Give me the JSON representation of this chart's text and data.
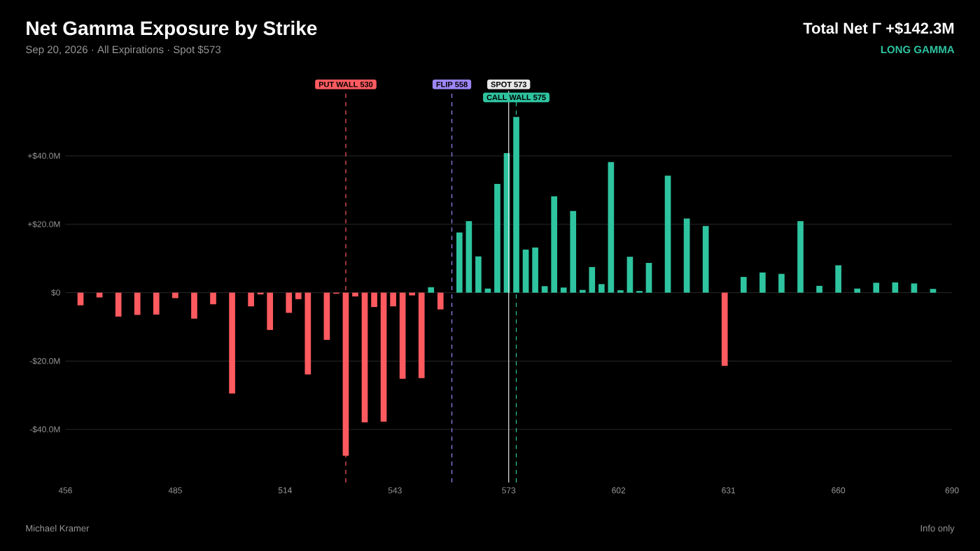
{
  "chart_data": {
    "type": "bar",
    "title": "Net Gamma Exposure by Strike",
    "subtitle": "Sep 20, 2026  ·  All Expirations  ·  Spot $573",
    "annotations": [
      "Total Net Γ  +$142.3M",
      "LONG GAMMA",
      "Michael Kramer",
      "Info only"
    ],
    "x": [
      460,
      465,
      470,
      475,
      480,
      485,
      490,
      495,
      500,
      505,
      507.5,
      510,
      515,
      517.5,
      520,
      525,
      527.5,
      530,
      532.5,
      535,
      537.5,
      540,
      542.5,
      545,
      547.5,
      550,
      552.5,
      555,
      560,
      562.5,
      565,
      567.5,
      570,
      572.5,
      575,
      577.5,
      580,
      582.5,
      585,
      587.5,
      590,
      592.5,
      595,
      597.5,
      600,
      602.5,
      605,
      607.5,
      610,
      615,
      620,
      625,
      630,
      635,
      640,
      645,
      650,
      655,
      660,
      665,
      670,
      675,
      680,
      685
    ],
    "values": [
      -3.7,
      -1.4,
      -7.0,
      -6.5,
      -6.4,
      -1.6,
      -7.6,
      -3.4,
      -29.5,
      -4.0,
      -0.5,
      -10.9,
      -5.9,
      -1.9,
      -23.9,
      -13.8,
      -0.3,
      -47.7,
      -1.1,
      -37.9,
      -4.2,
      -37.7,
      -4.0,
      -25.2,
      -0.8,
      -25.0,
      1.6,
      -4.9,
      17.6,
      20.9,
      10.6,
      1.2,
      31.8,
      40.8,
      51.4,
      12.6,
      13.2,
      1.9,
      28.2,
      1.5,
      23.9,
      0.8,
      7.5,
      2.5,
      38.2,
      0.7,
      10.5,
      0.5,
      8.7,
      34.2,
      21.7,
      19.5,
      -21.4,
      4.6,
      5.9,
      5.5,
      20.9,
      2.0,
      8.0,
      1.2,
      2.9,
      3.0,
      2.7,
      1.1
    ],
    "colors": [
      "#ff5a5f",
      "#ff5a5f",
      "#ff5a5f",
      "#ff5a5f",
      "#ff5a5f",
      "#ff5a5f",
      "#ff5a5f",
      "#ff5a5f",
      "#ff5a5f",
      "#ff5a5f",
      "#ff5a5f",
      "#ff5a5f",
      "#ff5a5f",
      "#ff5a5f",
      "#ff5a5f",
      "#ff5a5f",
      "#ff5a5f",
      "#ff5a5f",
      "#ff5a5f",
      "#ff5a5f",
      "#ff5a5f",
      "#ff5a5f",
      "#ff5a5f",
      "#ff5a5f",
      "#ff5a5f",
      "#ff5a5f",
      "#2ec4a0",
      "#ff5a5f",
      "#2ec4a0",
      "#2ec4a0",
      "#2ec4a0",
      "#2ec4a0",
      "#2ec4a0",
      "#2ec4a0",
      "#2ec4a0",
      "#2ec4a0",
      "#2ec4a0",
      "#2ec4a0",
      "#2ec4a0",
      "#2ec4a0",
      "#2ec4a0",
      "#2ec4a0",
      "#2ec4a0",
      "#2ec4a0",
      "#2ec4a0",
      "#2ec4a0",
      "#2ec4a0",
      "#2ec4a0",
      "#2ec4a0",
      "#2ec4a0",
      "#2ec4a0",
      "#2ec4a0",
      "#ff5a5f",
      "#2ec4a0",
      "#2ec4a0",
      "#2ec4a0",
      "#2ec4a0",
      "#2ec4a0",
      "#2ec4a0",
      "#2ec4a0",
      "#2ec4a0",
      "#2ec4a0",
      "#2ec4a0",
      "#2ec4a0"
    ],
    "xlim": [
      456,
      690
    ],
    "ylim": [
      -55.5,
      59
    ],
    "xticks": [
      456,
      485,
      514,
      543,
      573,
      602,
      631,
      660,
      690
    ],
    "yticks": [
      {
        "value": -40,
        "label": "-$40.0M"
      },
      {
        "value": -20,
        "label": "-$20.0M"
      },
      {
        "value": 0,
        "label": "$0"
      },
      {
        "value": 20,
        "label": "+$20.0M"
      },
      {
        "value": 40,
        "label": "+$40.0M"
      }
    ],
    "grid": "y",
    "ref_lines": [
      {
        "axis": "x",
        "value": 530,
        "label": "PUT WALL 530",
        "color": "#ff5a5f",
        "line_style": "dashed"
      },
      {
        "axis": "x",
        "value": 558,
        "label": "FLIP 558",
        "color": "#9d86f5",
        "line_style": "dashed"
      },
      {
        "axis": "x",
        "value": 573,
        "label": "SPOT 573",
        "color": "#e8e8e8",
        "line_style": "solid"
      },
      {
        "axis": "x",
        "value": 575,
        "label": "CALL WALL 575",
        "color": "#2ec4a0",
        "line_style": "dashed"
      }
    ]
  }
}
